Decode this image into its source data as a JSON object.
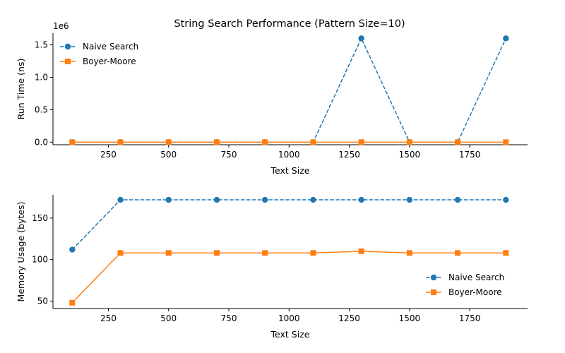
{
  "chart_data": [
    {
      "type": "line",
      "title": "String Search Performance (Pattern Size=10)",
      "xlabel": "Text Size",
      "ylabel": "Run Time (ns)",
      "offset_text": "1e6",
      "x": [
        100,
        300,
        500,
        700,
        900,
        1100,
        1300,
        1500,
        1700,
        1900
      ],
      "xticks": [
        250,
        500,
        750,
        1000,
        1250,
        1500,
        1750
      ],
      "xlim": [
        20,
        1990
      ],
      "yticks": [
        0.0,
        0.5,
        1.0,
        1.5
      ],
      "ytick_labels": [
        "0.0",
        "0.5",
        "1.0",
        "1.5"
      ],
      "ylim": [
        -0.04,
        1.68
      ],
      "legend_position": "top-left",
      "series": [
        {
          "name": "Naive Search",
          "values": [
            0.0,
            0.0,
            0.0,
            0.0,
            0.0,
            0.0,
            1.6,
            0.0,
            0.0,
            1.6
          ],
          "color": "#1f77b4",
          "marker": "circle",
          "dashed": true
        },
        {
          "name": "Boyer-Moore",
          "values": [
            0.0,
            0.0,
            0.0,
            0.0,
            0.0,
            0.0,
            0.0,
            0.0,
            0.0,
            0.0
          ],
          "color": "#ff7f0e",
          "marker": "square",
          "dashed": false
        }
      ]
    },
    {
      "type": "line",
      "title": "",
      "xlabel": "Text Size",
      "ylabel": "Memory Usage (bytes)",
      "offset_text": "",
      "x": [
        100,
        300,
        500,
        700,
        900,
        1100,
        1300,
        1500,
        1700,
        1900
      ],
      "xticks": [
        250,
        500,
        750,
        1000,
        1250,
        1500,
        1750
      ],
      "xlim": [
        20,
        1990
      ],
      "yticks": [
        50,
        100,
        150
      ],
      "ytick_labels": [
        "50",
        "100",
        "150"
      ],
      "ylim": [
        41,
        178
      ],
      "legend_position": "lower-right",
      "series": [
        {
          "name": "Naive Search",
          "values": [
            112,
            172,
            172,
            172,
            172,
            172,
            172,
            172,
            172,
            172
          ],
          "color": "#1f77b4",
          "marker": "circle",
          "dashed": true
        },
        {
          "name": "Boyer-Moore",
          "values": [
            48,
            108,
            108,
            108,
            108,
            108,
            110,
            108,
            108,
            108
          ],
          "color": "#ff7f0e",
          "marker": "square",
          "dashed": false
        }
      ]
    }
  ]
}
